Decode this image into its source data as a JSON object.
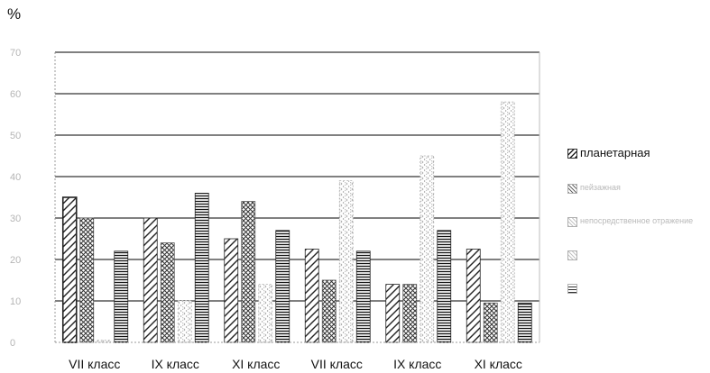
{
  "unit_label": "%",
  "chart_data": {
    "type": "bar",
    "title": "",
    "xlabel": "",
    "ylabel": "%",
    "ylim": [
      0,
      70
    ],
    "yticks": [
      "0",
      "10",
      "20",
      "30",
      "40",
      "50",
      "60",
      "70"
    ],
    "grid": "horizontal",
    "legend_position": "right",
    "categories": [
      "VII класс",
      "IX класс",
      "XI класс",
      "VII класс",
      "IX класс",
      "XI класс"
    ],
    "series": [
      {
        "name": "планетарная",
        "values": [
          35,
          30,
          25,
          22.5,
          14,
          22.5
        ],
        "pattern": "diag-right",
        "color": "#222222"
      },
      {
        "name": "пейзажная",
        "values": [
          30,
          24,
          34,
          15,
          14,
          9.5
        ],
        "pattern": "cross",
        "color": "#333333"
      },
      {
        "name": "непосредственное отражение",
        "values": [
          0.5,
          10,
          14,
          39,
          45,
          58
        ],
        "pattern": "diag-light",
        "color": "#9a9a9a"
      },
      {
        "name": "",
        "values": [
          22,
          36,
          27,
          22,
          27,
          9.5
        ],
        "pattern": "horizontal",
        "color": "#111111"
      }
    ],
    "legend": [
      {
        "label": "планетарная",
        "faded": false
      },
      {
        "label": "пейзажная",
        "faded": true
      },
      {
        "label": "непосредственное отражение",
        "faded": true
      },
      {
        "label": "",
        "faded": true
      },
      {
        "label": "",
        "faded": true
      }
    ]
  }
}
